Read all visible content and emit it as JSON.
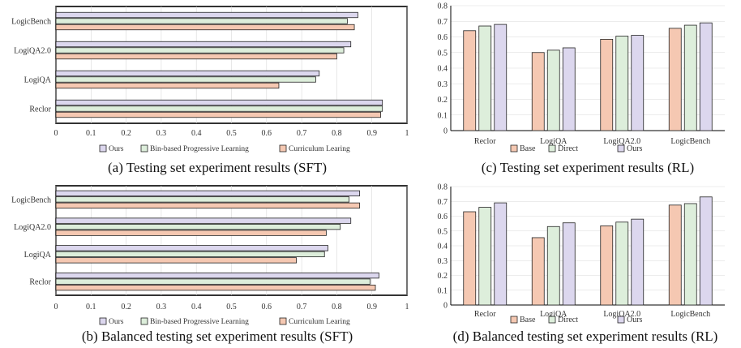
{
  "colors": {
    "ours": "#dcd7ee",
    "binBased": "#ddeedb",
    "curriculum": "#f5c8b2",
    "base": "#f5c8b2",
    "direct": "#ddeedb",
    "rlOurs": "#dcd7ee",
    "stroke": "#222222",
    "grid": "#d9d9d9"
  },
  "captions": {
    "a": "(a) Testing set experiment results (SFT)",
    "b": "(b) Balanced testing set experiment results (SFT)",
    "c": "(c) Testing set experiment results (RL)",
    "d": "(d) Balanced testing set experiment results (RL)"
  },
  "chart_data": [
    {
      "id": "a",
      "type": "bar",
      "orientation": "horizontal",
      "title": "(a) Testing set experiment results (SFT)",
      "categories": [
        "LogicBench",
        "LogiQA2.0",
        "LogiQA",
        "Reclor"
      ],
      "series": [
        {
          "name": "Ours",
          "values": [
            0.86,
            0.84,
            0.75,
            0.93
          ]
        },
        {
          "name": "Bin-based Progressive Learning",
          "values": [
            0.83,
            0.82,
            0.74,
            0.93
          ]
        },
        {
          "name": "Curriculum Learing",
          "values": [
            0.85,
            0.8,
            0.635,
            0.925
          ]
        }
      ],
      "xlim": [
        0,
        1
      ],
      "xticks": [
        "0",
        "0.1",
        "0.2",
        "0.3",
        "0.4",
        "0.5",
        "0.6",
        "0.7",
        "0.8",
        "0.9",
        "1"
      ],
      "legend": "bottom"
    },
    {
      "id": "b",
      "type": "bar",
      "orientation": "horizontal",
      "title": "(b) Balanced testing set experiment results (SFT)",
      "categories": [
        "LogicBench",
        "LogiQA2.0",
        "LogiQA",
        "Reclor"
      ],
      "series": [
        {
          "name": "Ours",
          "values": [
            0.865,
            0.84,
            0.775,
            0.92
          ]
        },
        {
          "name": "Bin-based Progressive Learning",
          "values": [
            0.835,
            0.81,
            0.765,
            0.895
          ]
        },
        {
          "name": "Curriculum Learing",
          "values": [
            0.865,
            0.77,
            0.685,
            0.91
          ]
        }
      ],
      "xlim": [
        0,
        1
      ],
      "xticks": [
        "0",
        "0.1",
        "0.2",
        "0.3",
        "0.4",
        "0.5",
        "0.6",
        "0.7",
        "0.8",
        "0.9",
        "1"
      ],
      "legend": "bottom"
    },
    {
      "id": "c",
      "type": "bar",
      "orientation": "vertical",
      "title": "(c) Testing set experiment results (RL)",
      "categories": [
        "Reclor",
        "LogiQA",
        "LogiQA2.0",
        "LogicBench"
      ],
      "series": [
        {
          "name": "Base",
          "values": [
            0.64,
            0.5,
            0.585,
            0.655
          ]
        },
        {
          "name": "Direct",
          "values": [
            0.67,
            0.515,
            0.605,
            0.675
          ]
        },
        {
          "name": "Ours",
          "values": [
            0.68,
            0.53,
            0.61,
            0.69
          ]
        }
      ],
      "ylim": [
        0,
        0.8
      ],
      "yticks": [
        "0",
        "0.1",
        "0.2",
        "0.3",
        "0.4",
        "0.5",
        "0.6",
        "0.7",
        "0.8"
      ],
      "legend": "bottom"
    },
    {
      "id": "d",
      "type": "bar",
      "orientation": "vertical",
      "title": "(d) Balanced testing set experiment results (RL)",
      "categories": [
        "Reclor",
        "LogiQA",
        "LogiQA2.0",
        "LogicBench"
      ],
      "series": [
        {
          "name": "Base",
          "values": [
            0.63,
            0.455,
            0.535,
            0.675
          ]
        },
        {
          "name": "Direct",
          "values": [
            0.66,
            0.53,
            0.56,
            0.685
          ]
        },
        {
          "name": "Ours",
          "values": [
            0.69,
            0.555,
            0.58,
            0.73
          ]
        }
      ],
      "ylim": [
        0,
        0.8
      ],
      "yticks": [
        "0",
        "0.1",
        "0.2",
        "0.3",
        "0.4",
        "0.5",
        "0.6",
        "0.7",
        "0.8"
      ],
      "legend": "bottom-overlapping-ticks"
    }
  ]
}
